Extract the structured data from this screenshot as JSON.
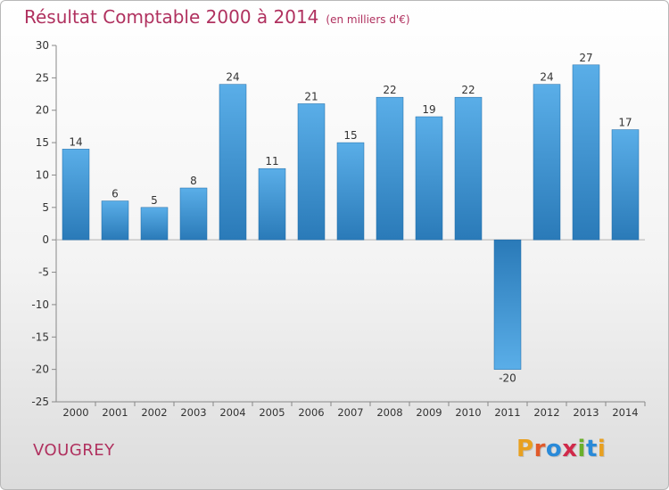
{
  "header": {
    "title": "Résultat Comptable 2000 à 2014",
    "unit": "(en milliers d'€)"
  },
  "footer": {
    "commune": "VOUGREY",
    "logo": "Proxiti"
  },
  "colors": {
    "title": "#b0315f",
    "bar_light": "#5aaee8",
    "bar_dark": "#2a7ab8",
    "logo_letters": [
      "#e8a020",
      "#e05a2a",
      "#2a8ad8",
      "#d02a4a",
      "#6ab02a",
      "#2a8ad8",
      "#e8a020"
    ]
  },
  "chart_data": {
    "type": "bar",
    "title": "Résultat Comptable 2000 à 2014",
    "subtitle": "(en milliers d'€)",
    "categories": [
      "2000",
      "2001",
      "2002",
      "2003",
      "2004",
      "2005",
      "2006",
      "2007",
      "2008",
      "2009",
      "2010",
      "2011",
      "2012",
      "2013",
      "2014"
    ],
    "values": [
      14,
      6,
      5,
      8,
      24,
      11,
      21,
      15,
      22,
      19,
      22,
      -20,
      24,
      27,
      17
    ],
    "ylim": [
      -25,
      30
    ],
    "yticks": [
      30,
      25,
      20,
      15,
      10,
      5,
      0,
      -5,
      -10,
      -15,
      -20,
      -25
    ],
    "grid": false,
    "xlabel": "",
    "ylabel": ""
  }
}
